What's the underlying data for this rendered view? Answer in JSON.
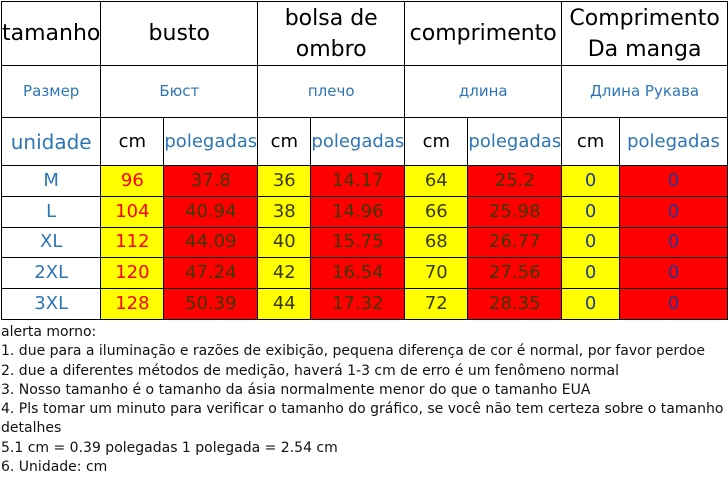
{
  "headers": {
    "size": "tamanho",
    "busto": "busto",
    "ombro": "bolsa de ombro",
    "comprimento": "comprimento",
    "manga": "Comprimento Da manga"
  },
  "russian": {
    "size": "Размер",
    "busto": "Бюст",
    "ombro": "плечо",
    "comprimento": "длина",
    "manga": "Длина Рукава"
  },
  "units": {
    "label": "unidade",
    "cm": "cm",
    "polegadas": "polegadas"
  },
  "rows": [
    {
      "size": "M",
      "busto_cm": "96",
      "busto_in": "37.8",
      "ombro_cm": "36",
      "ombro_in": "14.17",
      "comp_cm": "64",
      "comp_in": "25.2",
      "manga_cm": "0",
      "manga_in": "0"
    },
    {
      "size": "L",
      "busto_cm": "104",
      "busto_in": "40.94",
      "ombro_cm": "38",
      "ombro_in": "14.96",
      "comp_cm": "66",
      "comp_in": "25.98",
      "manga_cm": "0",
      "manga_in": "0"
    },
    {
      "size": "XL",
      "busto_cm": "112",
      "busto_in": "44.09",
      "ombro_cm": "40",
      "ombro_in": "15.75",
      "comp_cm": "68",
      "comp_in": "26.77",
      "manga_cm": "0",
      "manga_in": "0"
    },
    {
      "size": "2XL",
      "busto_cm": "120",
      "busto_in": "47.24",
      "ombro_cm": "42",
      "ombro_in": "16.54",
      "comp_cm": "70",
      "comp_in": "27.56",
      "manga_cm": "0",
      "manga_in": "0"
    },
    {
      "size": "3XL",
      "busto_cm": "128",
      "busto_in": "50.39",
      "ombro_cm": "44",
      "ombro_in": "17.32",
      "comp_cm": "72",
      "comp_in": "28.35",
      "manga_cm": "0",
      "manga_in": "0"
    }
  ],
  "notes": [
    "alerta morno:",
    "1. due para a iluminação e razões de exibição, pequena diferença de cor é normal, por favor perdoe",
    "2. due a diferentes métodos de medição, haverá 1-3 cm de erro é um fenômeno normal",
    "3. Nosso tamanho é o tamanho da ásia normalmente menor do que o tamanho EUA",
    "4. Pls tomar um minuto para verificar o tamanho do gráfico, se você não tem certeza sobre o tamanho",
    "detalhes",
    "5.1 cm = 0.39 polegadas 1 polegada = 2.54 cm",
    "6. Unidade: cm"
  ],
  "colors": {
    "cm_fill": "#ffff00",
    "inch_fill": "#ff0000",
    "label_blue": "#2e75b6",
    "bust_cm_text": "#ff0000"
  }
}
